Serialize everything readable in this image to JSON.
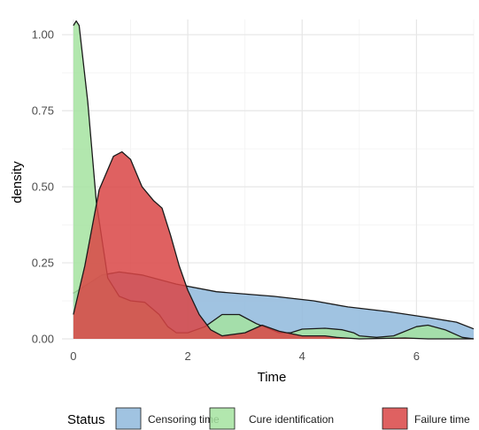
{
  "chart_data": {
    "type": "area",
    "xlabel": "Time",
    "ylabel": "density",
    "xlim": [
      -0.2,
      7
    ],
    "ylim": [
      0,
      1.05
    ],
    "x_ticks": [
      0,
      2,
      4,
      6
    ],
    "y_ticks": [
      0.0,
      0.25,
      0.5,
      0.75,
      1.0
    ],
    "x_tick_labels": [
      "0",
      "2",
      "4",
      "6"
    ],
    "y_tick_labels": [
      "0.00",
      "0.25",
      "0.50",
      "0.75",
      "1.00"
    ],
    "grid": true,
    "legend_position": "bottom",
    "legend_title": "Status",
    "series": [
      {
        "name": "Censoring time",
        "color": "#8fb9dc",
        "points": [
          [
            0,
            0.15
          ],
          [
            0.5,
            0.21
          ],
          [
            0.8,
            0.22
          ],
          [
            1.2,
            0.21
          ],
          [
            1.8,
            0.18
          ],
          [
            2.5,
            0.155
          ],
          [
            3.5,
            0.14
          ],
          [
            4.2,
            0.125
          ],
          [
            4.8,
            0.105
          ],
          [
            5.5,
            0.09
          ],
          [
            6.2,
            0.07
          ],
          [
            6.7,
            0.055
          ],
          [
            7.0,
            0.033
          ]
        ]
      },
      {
        "name": "Cure identification",
        "color": "#a5e3a0",
        "points": [
          [
            0,
            1.03
          ],
          [
            0.05,
            1.045
          ],
          [
            0.1,
            1.03
          ],
          [
            0.25,
            0.78
          ],
          [
            0.4,
            0.45
          ],
          [
            0.6,
            0.2
          ],
          [
            0.8,
            0.14
          ],
          [
            1.0,
            0.125
          ],
          [
            1.25,
            0.12
          ],
          [
            1.5,
            0.08
          ],
          [
            1.65,
            0.04
          ],
          [
            1.8,
            0.02
          ],
          [
            2.0,
            0.02
          ],
          [
            2.3,
            0.04
          ],
          [
            2.6,
            0.08
          ],
          [
            2.9,
            0.08
          ],
          [
            3.2,
            0.05
          ],
          [
            3.6,
            0.02
          ],
          [
            3.8,
            0.02
          ],
          [
            4.0,
            0.032
          ],
          [
            4.4,
            0.035
          ],
          [
            4.7,
            0.03
          ],
          [
            4.9,
            0.02
          ],
          [
            5.0,
            0.01
          ],
          [
            5.3,
            0.005
          ],
          [
            5.6,
            0.01
          ],
          [
            6.0,
            0.04
          ],
          [
            6.2,
            0.045
          ],
          [
            6.5,
            0.03
          ],
          [
            6.8,
            0.005
          ],
          [
            7.0,
            0.0
          ]
        ]
      },
      {
        "name": "Failure time",
        "color": "#d94545",
        "points": [
          [
            0,
            0.08
          ],
          [
            0.2,
            0.24
          ],
          [
            0.45,
            0.49
          ],
          [
            0.7,
            0.6
          ],
          [
            0.85,
            0.615
          ],
          [
            1.0,
            0.59
          ],
          [
            1.2,
            0.5
          ],
          [
            1.4,
            0.455
          ],
          [
            1.55,
            0.43
          ],
          [
            1.7,
            0.34
          ],
          [
            1.85,
            0.24
          ],
          [
            2.0,
            0.16
          ],
          [
            2.2,
            0.08
          ],
          [
            2.4,
            0.03
          ],
          [
            2.6,
            0.01
          ],
          [
            3.0,
            0.02
          ],
          [
            3.3,
            0.045
          ],
          [
            3.6,
            0.025
          ],
          [
            4.0,
            0.01
          ],
          [
            4.4,
            0.01
          ],
          [
            4.6,
            0.005
          ],
          [
            5.0,
            0.0
          ],
          [
            5.8,
            0.003
          ],
          [
            6.2,
            0.0
          ],
          [
            7.0,
            0.0
          ]
        ]
      }
    ]
  }
}
